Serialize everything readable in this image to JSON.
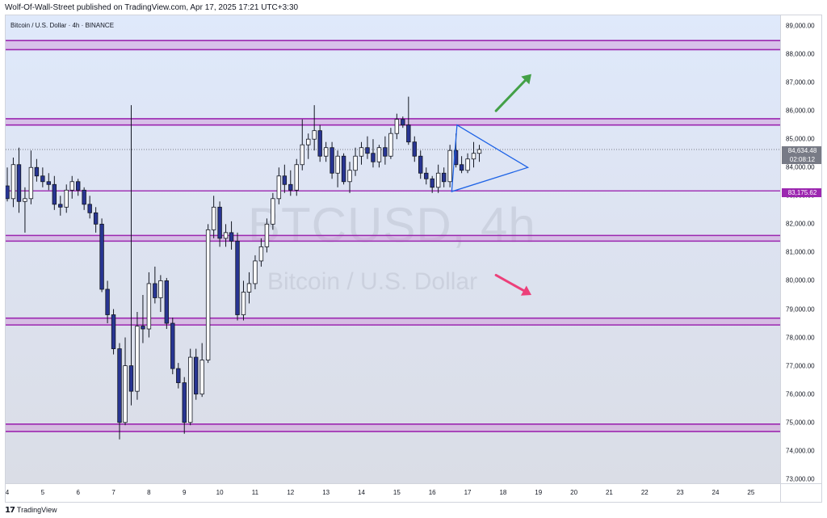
{
  "header": {
    "publisher_line": "Wolf-Of-Wall-Street published on TradingView.com, Apr 17, 2025 17:21 UTC+3:30"
  },
  "chart": {
    "symbol_line": "Bitcoin / U.S. Dollar · 4h · BINANCE",
    "watermark_symbol": "BTCUSD, 4h",
    "watermark_description": "Bitcoin / U.S. Dollar",
    "current_price_label": "84,634.48",
    "countdown_label": "02:08:12",
    "level_price_label": "83,175.62"
  },
  "footer": {
    "brand_name": "TradingView",
    "brand_mark": "17"
  },
  "colors": {
    "bull_candle": "#ffffff",
    "bear_candle": "#283593",
    "wick": "#131722",
    "zone_line": "#9c27b0",
    "zone_fill": "#ce93d8",
    "triangle": "#1e63e6",
    "arrow_up": "#43a047",
    "arrow_down": "#ec407a"
  },
  "icons": {
    "arrow_up": "green-up-arrow-icon",
    "arrow_down": "pink-down-arrow-icon"
  },
  "chart_data": {
    "type": "candlestick",
    "title": "Bitcoin / U.S. Dollar · 4h · BINANCE",
    "xlabel": "",
    "ylabel": "",
    "grid": false,
    "legend": "none",
    "ylim": [
      73000,
      89500
    ],
    "y_ticks": [
      89000,
      88000,
      87000,
      86000,
      85000,
      84000,
      83000,
      82000,
      81000,
      80000,
      79000,
      78000,
      77000,
      76000,
      75000,
      74000,
      73000
    ],
    "y_tick_labels": [
      "89,000.00",
      "88,000.00",
      "87,000.00",
      "86,000.00",
      "85,000.00",
      "84,000.00",
      "83,000.00",
      "82,000.00",
      "81,000.00",
      "80,000.00",
      "79,000.00",
      "78,000.00",
      "77,000.00",
      "76,000.00",
      "75,000.00",
      "74,000.00",
      "73,000.00"
    ],
    "x_ticks": [
      "4",
      "5",
      "6",
      "7",
      "8",
      "9",
      "10",
      "11",
      "12",
      "13",
      "14",
      "15",
      "16",
      "17",
      "18",
      "19",
      "20",
      "21",
      "22",
      "23",
      "24",
      "25"
    ],
    "x_tick_days": [
      4,
      5,
      6,
      7,
      8,
      9,
      10,
      11,
      12,
      13,
      14,
      15,
      16,
      17,
      18,
      19,
      20,
      21,
      22,
      23,
      24,
      25
    ],
    "candles": [
      {
        "day": 4.0,
        "o": 83350,
        "h": 84000,
        "l": 82800,
        "c": 82900
      },
      {
        "day": 4.17,
        "o": 82900,
        "h": 84350,
        "l": 82600,
        "c": 84100
      },
      {
        "day": 4.33,
        "o": 84100,
        "h": 84700,
        "l": 82400,
        "c": 82800
      },
      {
        "day": 4.5,
        "o": 82800,
        "h": 83300,
        "l": 81700,
        "c": 82900
      },
      {
        "day": 4.67,
        "o": 82900,
        "h": 84600,
        "l": 82700,
        "c": 84000
      },
      {
        "day": 4.83,
        "o": 84000,
        "h": 84300,
        "l": 83500,
        "c": 83700
      },
      {
        "day": 5.0,
        "o": 83700,
        "h": 84000,
        "l": 83300,
        "c": 83500
      },
      {
        "day": 5.17,
        "o": 83500,
        "h": 83800,
        "l": 83200,
        "c": 83400
      },
      {
        "day": 5.33,
        "o": 83400,
        "h": 83700,
        "l": 82500,
        "c": 82700
      },
      {
        "day": 5.5,
        "o": 82700,
        "h": 83000,
        "l": 82300,
        "c": 82600
      },
      {
        "day": 5.67,
        "o": 82600,
        "h": 83400,
        "l": 82400,
        "c": 83200
      },
      {
        "day": 5.83,
        "o": 83200,
        "h": 83700,
        "l": 82900,
        "c": 83500
      },
      {
        "day": 6.0,
        "o": 83500,
        "h": 83600,
        "l": 83000,
        "c": 83200
      },
      {
        "day": 6.17,
        "o": 83200,
        "h": 83300,
        "l": 82500,
        "c": 82700
      },
      {
        "day": 6.33,
        "o": 82700,
        "h": 83000,
        "l": 82200,
        "c": 82400
      },
      {
        "day": 6.5,
        "o": 82400,
        "h": 82600,
        "l": 81700,
        "c": 82000
      },
      {
        "day": 6.67,
        "o": 82000,
        "h": 82200,
        "l": 79600,
        "c": 79700
      },
      {
        "day": 6.83,
        "o": 79700,
        "h": 80000,
        "l": 78500,
        "c": 78800
      },
      {
        "day": 7.0,
        "o": 78800,
        "h": 79000,
        "l": 77400,
        "c": 77600
      },
      {
        "day": 7.17,
        "o": 77600,
        "h": 77800,
        "l": 74400,
        "c": 75000
      },
      {
        "day": 7.33,
        "o": 75000,
        "h": 78000,
        "l": 74900,
        "c": 77000
      },
      {
        "day": 7.5,
        "o": 77000,
        "h": 86200,
        "l": 75600,
        "c": 76100
      },
      {
        "day": 7.67,
        "o": 76100,
        "h": 78900,
        "l": 75800,
        "c": 78400
      },
      {
        "day": 7.83,
        "o": 78400,
        "h": 79500,
        "l": 77800,
        "c": 78300
      },
      {
        "day": 8.0,
        "o": 78300,
        "h": 80300,
        "l": 78000,
        "c": 79900
      },
      {
        "day": 8.17,
        "o": 79900,
        "h": 80500,
        "l": 79200,
        "c": 79400
      },
      {
        "day": 8.33,
        "o": 79400,
        "h": 80200,
        "l": 78900,
        "c": 80000
      },
      {
        "day": 8.5,
        "o": 80000,
        "h": 80100,
        "l": 78300,
        "c": 78500
      },
      {
        "day": 8.67,
        "o": 78500,
        "h": 78700,
        "l": 76700,
        "c": 76900
      },
      {
        "day": 8.83,
        "o": 76900,
        "h": 77100,
        "l": 76200,
        "c": 76400
      },
      {
        "day": 9.0,
        "o": 76400,
        "h": 76600,
        "l": 74600,
        "c": 75000
      },
      {
        "day": 9.17,
        "o": 75000,
        "h": 77600,
        "l": 74900,
        "c": 77300
      },
      {
        "day": 9.33,
        "o": 77300,
        "h": 77600,
        "l": 75800,
        "c": 76000
      },
      {
        "day": 9.5,
        "o": 76000,
        "h": 77800,
        "l": 75900,
        "c": 77200
      },
      {
        "day": 9.67,
        "o": 77200,
        "h": 82000,
        "l": 77100,
        "c": 81800
      },
      {
        "day": 9.83,
        "o": 81800,
        "h": 83000,
        "l": 81500,
        "c": 82600
      },
      {
        "day": 10.0,
        "o": 82600,
        "h": 82800,
        "l": 81200,
        "c": 81500
      },
      {
        "day": 10.17,
        "o": 81500,
        "h": 82000,
        "l": 81200,
        "c": 81700
      },
      {
        "day": 10.33,
        "o": 81700,
        "h": 82100,
        "l": 81100,
        "c": 81400
      },
      {
        "day": 10.5,
        "o": 81400,
        "h": 81700,
        "l": 78600,
        "c": 78800
      },
      {
        "day": 10.67,
        "o": 78800,
        "h": 80000,
        "l": 78600,
        "c": 79600
      },
      {
        "day": 10.83,
        "o": 79600,
        "h": 80300,
        "l": 79200,
        "c": 79900
      },
      {
        "day": 11.0,
        "o": 79900,
        "h": 80900,
        "l": 79700,
        "c": 80700
      },
      {
        "day": 11.17,
        "o": 80700,
        "h": 81500,
        "l": 80500,
        "c": 81200
      },
      {
        "day": 11.33,
        "o": 81200,
        "h": 82200,
        "l": 81000,
        "c": 82000
      },
      {
        "day": 11.5,
        "o": 82000,
        "h": 83100,
        "l": 81800,
        "c": 82900
      },
      {
        "day": 11.67,
        "o": 82900,
        "h": 84000,
        "l": 82700,
        "c": 83700
      },
      {
        "day": 11.83,
        "o": 83700,
        "h": 84100,
        "l": 83100,
        "c": 83400
      },
      {
        "day": 12.0,
        "o": 83400,
        "h": 83900,
        "l": 83000,
        "c": 83200
      },
      {
        "day": 12.17,
        "o": 83200,
        "h": 84300,
        "l": 83000,
        "c": 84100
      },
      {
        "day": 12.33,
        "o": 84100,
        "h": 85700,
        "l": 83900,
        "c": 84800
      },
      {
        "day": 12.5,
        "o": 84800,
        "h": 85200,
        "l": 84300,
        "c": 85000
      },
      {
        "day": 12.67,
        "o": 85000,
        "h": 86200,
        "l": 84600,
        "c": 85300
      },
      {
        "day": 12.83,
        "o": 85300,
        "h": 85500,
        "l": 84200,
        "c": 84400
      },
      {
        "day": 13.0,
        "o": 84400,
        "h": 84900,
        "l": 84200,
        "c": 84700
      },
      {
        "day": 13.17,
        "o": 84700,
        "h": 84900,
        "l": 83600,
        "c": 83800
      },
      {
        "day": 13.33,
        "o": 83800,
        "h": 84600,
        "l": 83300,
        "c": 84400
      },
      {
        "day": 13.5,
        "o": 84400,
        "h": 84500,
        "l": 83400,
        "c": 83500
      },
      {
        "day": 13.67,
        "o": 83500,
        "h": 84200,
        "l": 83100,
        "c": 83900
      },
      {
        "day": 13.83,
        "o": 83900,
        "h": 84700,
        "l": 83700,
        "c": 84400
      },
      {
        "day": 14.0,
        "o": 84400,
        "h": 84900,
        "l": 84100,
        "c": 84700
      },
      {
        "day": 14.17,
        "o": 84700,
        "h": 85100,
        "l": 84300,
        "c": 84500
      },
      {
        "day": 14.33,
        "o": 84500,
        "h": 85000,
        "l": 84000,
        "c": 84200
      },
      {
        "day": 14.5,
        "o": 84200,
        "h": 84800,
        "l": 84000,
        "c": 84700
      },
      {
        "day": 14.67,
        "o": 84700,
        "h": 85100,
        "l": 84100,
        "c": 84400
      },
      {
        "day": 14.83,
        "o": 84400,
        "h": 85400,
        "l": 84300,
        "c": 85200
      },
      {
        "day": 15.0,
        "o": 85200,
        "h": 85900,
        "l": 85000,
        "c": 85700
      },
      {
        "day": 15.17,
        "o": 85700,
        "h": 85800,
        "l": 85400,
        "c": 85500
      },
      {
        "day": 15.33,
        "o": 85500,
        "h": 86500,
        "l": 84800,
        "c": 84900
      },
      {
        "day": 15.5,
        "o": 84900,
        "h": 85100,
        "l": 84200,
        "c": 84400
      },
      {
        "day": 15.67,
        "o": 84400,
        "h": 84600,
        "l": 83600,
        "c": 83800
      },
      {
        "day": 15.83,
        "o": 83800,
        "h": 84000,
        "l": 83400,
        "c": 83600
      },
      {
        "day": 16.0,
        "o": 83600,
        "h": 83700,
        "l": 83100,
        "c": 83300
      },
      {
        "day": 16.17,
        "o": 83300,
        "h": 84100,
        "l": 83100,
        "c": 83800
      },
      {
        "day": 16.33,
        "o": 83800,
        "h": 84000,
        "l": 83300,
        "c": 83500
      },
      {
        "day": 16.5,
        "o": 83500,
        "h": 84800,
        "l": 83300,
        "c": 84600
      },
      {
        "day": 16.67,
        "o": 84600,
        "h": 85200,
        "l": 84000,
        "c": 84100
      },
      {
        "day": 16.83,
        "o": 84100,
        "h": 84400,
        "l": 83800,
        "c": 83900
      },
      {
        "day": 17.0,
        "o": 83900,
        "h": 84500,
        "l": 83800,
        "c": 84300
      },
      {
        "day": 17.17,
        "o": 84300,
        "h": 84900,
        "l": 84000,
        "c": 84500
      },
      {
        "day": 17.33,
        "o": 84500,
        "h": 84800,
        "l": 84200,
        "c": 84634
      }
    ],
    "horizontal_zones": [
      {
        "top": 88480,
        "bottom": 88160
      },
      {
        "top": 85720,
        "bottom": 85500
      },
      {
        "top": 83175,
        "bottom": 83175
      },
      {
        "top": 81600,
        "bottom": 81400
      },
      {
        "top": 78680,
        "bottom": 78440
      },
      {
        "top": 74940,
        "bottom": 74680
      }
    ],
    "triangle": {
      "points": [
        [
          16.7,
          85500
        ],
        [
          18.7,
          84000
        ],
        [
          16.55,
          83150
        ]
      ]
    },
    "arrows": [
      {
        "direction": "up",
        "from": [
          17.8,
          86000
        ],
        "to": [
          18.8,
          87300
        ]
      },
      {
        "direction": "down",
        "from": [
          17.8,
          80200
        ],
        "to": [
          18.8,
          79500
        ]
      }
    ],
    "current_price": 84634.48,
    "level_price": 83175.62
  }
}
